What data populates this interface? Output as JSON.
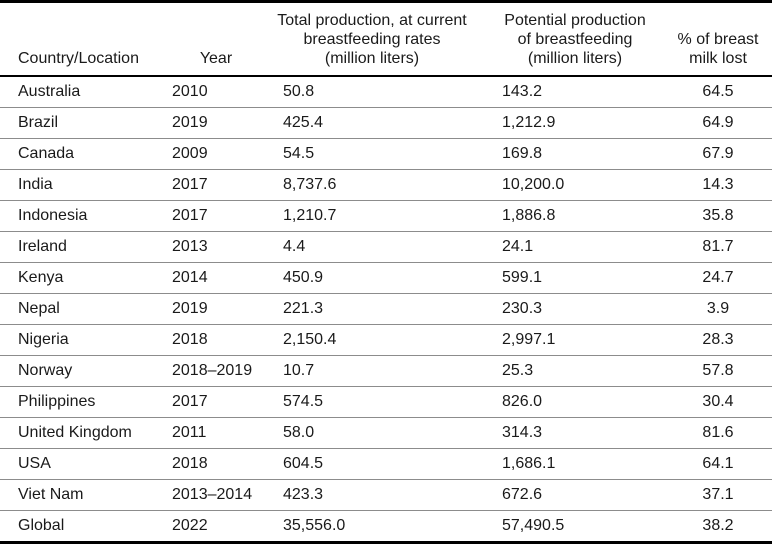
{
  "chart_data": {
    "type": "table",
    "columns": [
      {
        "id": "country",
        "label": "Country/Location"
      },
      {
        "id": "year",
        "label": "Year"
      },
      {
        "id": "total-production",
        "label": "Total production, at current\nbreastfeeding rates\n(million liters)"
      },
      {
        "id": "potential-production",
        "label": "Potential production\nof breastfeeding\n(million liters)"
      },
      {
        "id": "percent-lost",
        "label": "% of breast\nmilk lost"
      }
    ],
    "rows": [
      [
        "Australia",
        "2010",
        "50.8",
        "143.2",
        "64.5"
      ],
      [
        "Brazil",
        "2019",
        "425.4",
        "1,212.9",
        "64.9"
      ],
      [
        "Canada",
        "2009",
        "54.5",
        "169.8",
        "67.9"
      ],
      [
        "India",
        "2017",
        "8,737.6",
        "10,200.0",
        "14.3"
      ],
      [
        "Indonesia",
        "2017",
        "1,210.7",
        "1,886.8",
        "35.8"
      ],
      [
        "Ireland",
        "2013",
        "4.4",
        "24.1",
        "81.7"
      ],
      [
        "Kenya",
        "2014",
        "450.9",
        "599.1",
        "24.7"
      ],
      [
        "Nepal",
        "2019",
        "221.3",
        "230.3",
        "3.9"
      ],
      [
        "Nigeria",
        "2018",
        "2,150.4",
        "2,997.1",
        "28.3"
      ],
      [
        "Norway",
        "2018–2019",
        "10.7",
        "25.3",
        "57.8"
      ],
      [
        "Philippines",
        "2017",
        "574.5",
        "826.0",
        "30.4"
      ],
      [
        "United Kingdom",
        "2011",
        "58.0",
        "314.3",
        "81.6"
      ],
      [
        "USA",
        "2018",
        "604.5",
        "1,686.1",
        "64.1"
      ],
      [
        "Viet Nam",
        "2013–2014",
        "423.3",
        "672.6",
        "37.1"
      ],
      [
        "Global",
        "2022",
        "35,556.0",
        "57,490.5",
        "38.2"
      ]
    ]
  },
  "colors": {
    "border_strong": "#000000",
    "border_light": "#8c8c8c",
    "text": "#1a1a1a",
    "background": "#ffffff"
  }
}
